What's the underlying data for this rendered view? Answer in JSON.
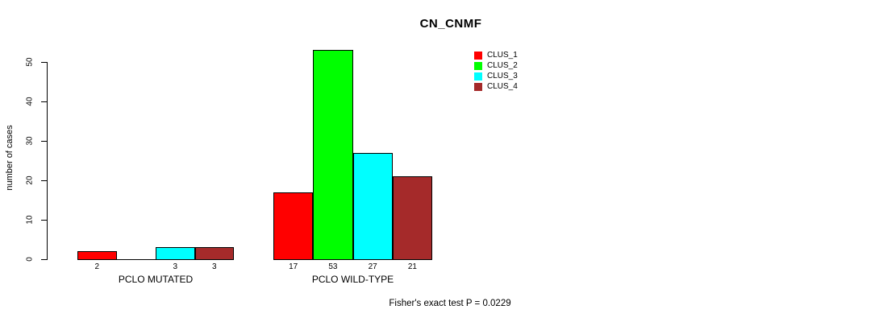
{
  "chart_data": {
    "type": "bar",
    "title": "CN_CNMF",
    "xlabel": "",
    "ylabel": "number of cases",
    "ylim": [
      0,
      50
    ],
    "yticks": [
      0,
      10,
      20,
      30,
      40,
      50
    ],
    "grid": false,
    "legend_position": "top-right",
    "series": [
      {
        "name": "CLUS_1",
        "color": "#FF0000"
      },
      {
        "name": "CLUS_2",
        "color": "#00FF00"
      },
      {
        "name": "CLUS_3",
        "color": "#00FFFF"
      },
      {
        "name": "CLUS_4",
        "color": "#A52A2A"
      }
    ],
    "groups": [
      {
        "label": "PCLO MUTATED",
        "values": [
          2,
          0,
          3,
          3
        ],
        "bar_labels": [
          "2",
          "",
          "3",
          "3"
        ]
      },
      {
        "label": "PCLO WILD-TYPE",
        "values": [
          17,
          53,
          27,
          21
        ],
        "bar_labels": [
          "17",
          "53",
          "27",
          "21"
        ]
      }
    ],
    "annotation": "Fisher's exact test P = 0.0229"
  }
}
